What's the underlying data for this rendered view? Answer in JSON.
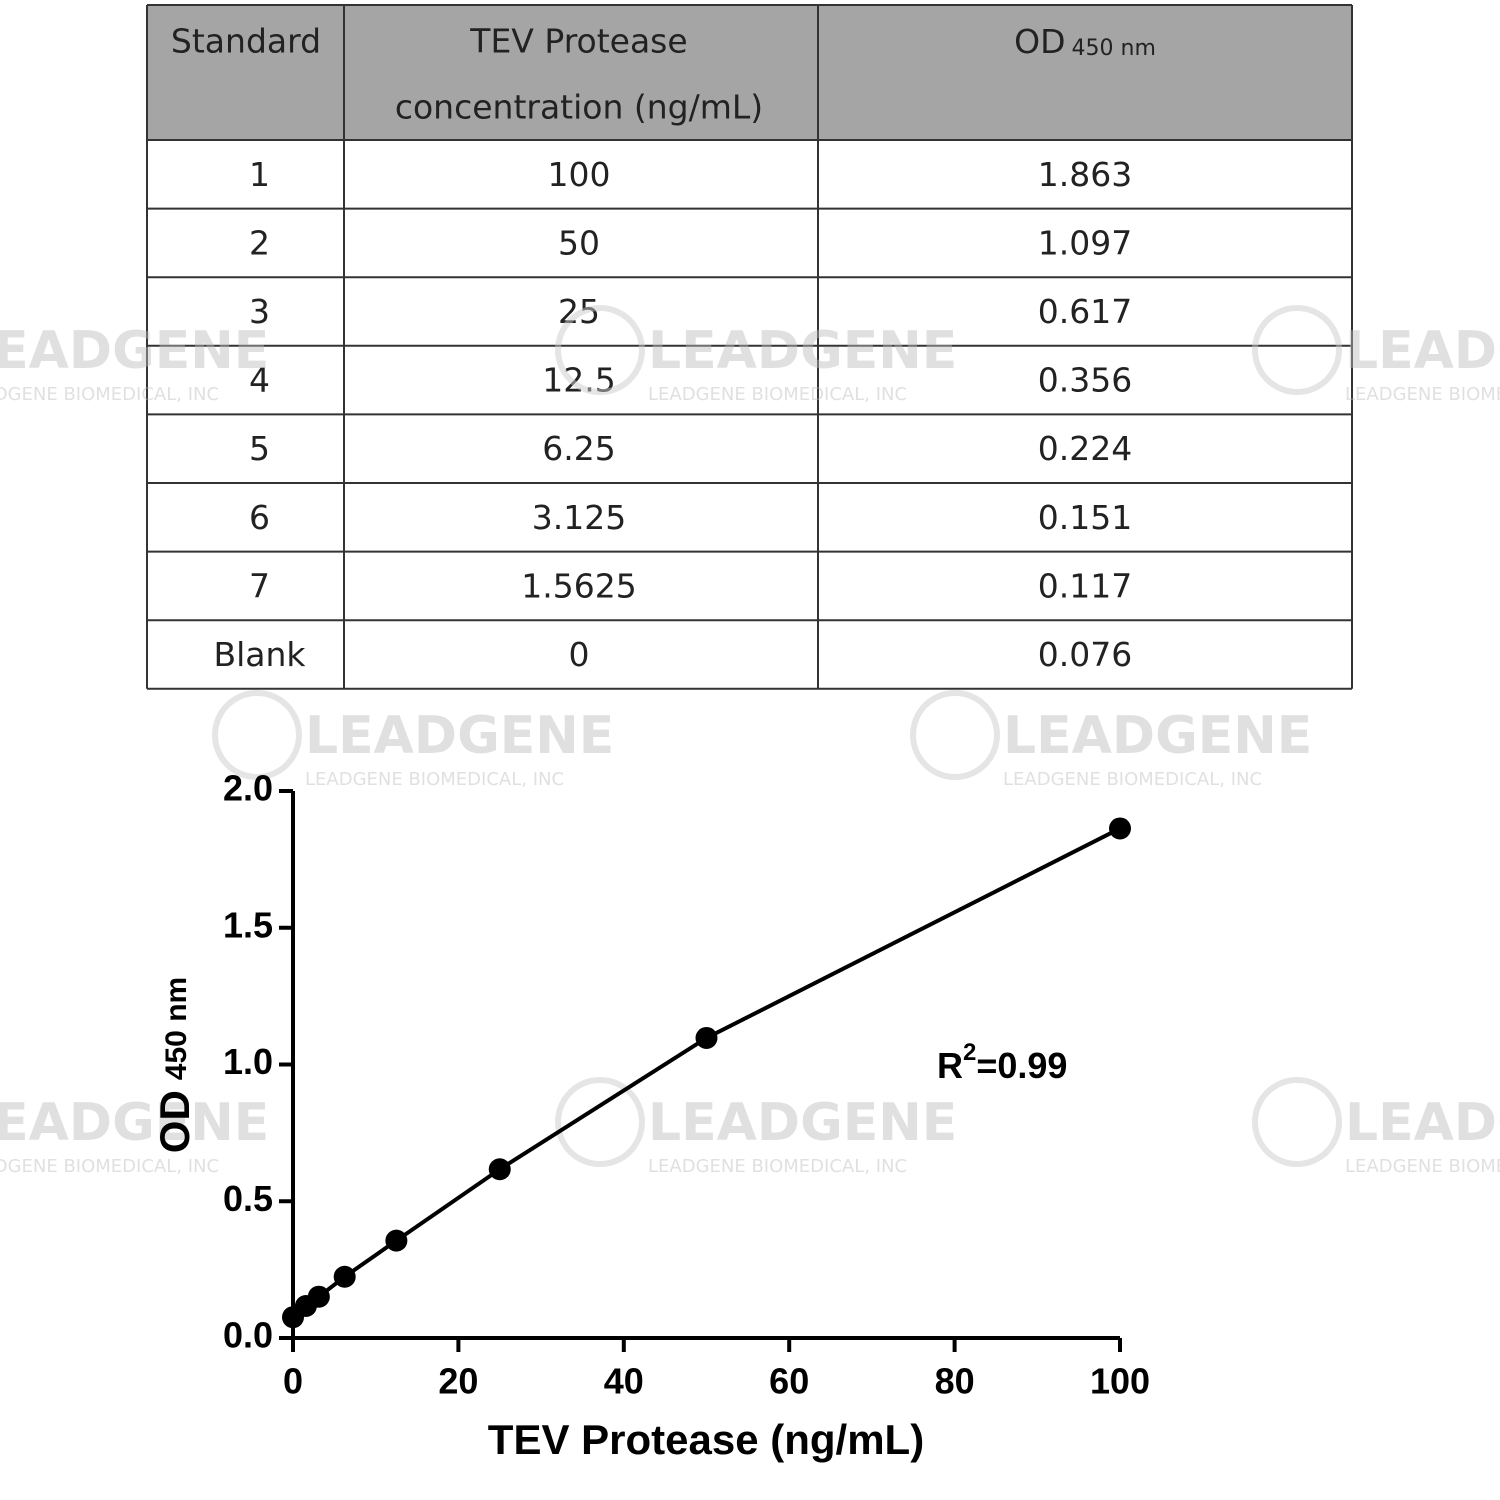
{
  "watermark": {
    "brand": "LEADGENE",
    "company": "LEADGENE BIOMEDICAL, INC"
  },
  "table": {
    "header": [
      "Standard",
      [
        "TEV Protease",
        "concentration (ng/mL)"
      ],
      {
        "text": "OD",
        "sub": "450 nm"
      }
    ],
    "rows": [
      [
        "1",
        "100",
        "1.863"
      ],
      [
        "2",
        "50",
        "1.097"
      ],
      [
        "3",
        "25",
        "0.617"
      ],
      [
        "4",
        "12.5",
        "0.356"
      ],
      [
        "5",
        "6.25",
        "0.224"
      ],
      [
        "6",
        "3.125",
        "0.151"
      ],
      [
        "7",
        "1.5625",
        "0.117"
      ],
      [
        "Blank",
        "0",
        "0.076"
      ]
    ]
  },
  "chart_data": {
    "type": "scatter",
    "x": [
      100,
      50,
      25,
      12.5,
      6.25,
      3.125,
      1.5625,
      0
    ],
    "values": [
      1.863,
      1.097,
      0.617,
      0.356,
      0.224,
      0.151,
      0.117,
      0.076
    ],
    "color": "#000000",
    "x_label": "TEV Protease (ng/mL)",
    "y_label": {
      "text": "OD",
      "sub": "450 nm"
    },
    "annotation": {
      "base": "R",
      "sup": "2",
      "text": "=0.99"
    },
    "xlim": [
      0,
      100
    ],
    "xticks": [
      0,
      20,
      40,
      60,
      80,
      100
    ],
    "ylim": [
      0,
      2
    ],
    "yticks": [
      {
        "value": 0,
        "label": "0.0"
      },
      0.5,
      {
        "value": 1,
        "label": "1.0"
      },
      1.5,
      {
        "value": 2,
        "label": "2.0"
      }
    ]
  }
}
